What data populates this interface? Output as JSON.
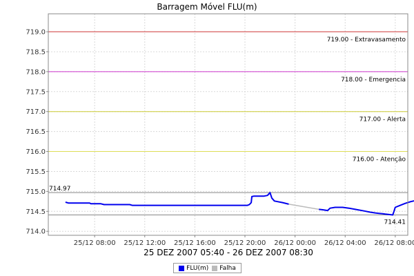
{
  "chart_data": {
    "type": "line",
    "title": "Barragem Móvel FLU(m)",
    "xlabel": "25 DEZ 2007 05:40 - 26 DEZ 2007 08:30",
    "ylabel": "",
    "grid": true,
    "ylim": [
      713.9,
      719.45
    ],
    "xlim_hours": [
      4.3,
      33.0
    ],
    "yticks": [
      "714.0",
      "714.5",
      "715.0",
      "715.5",
      "716.0",
      "716.5",
      "717.0",
      "717.5",
      "718.0",
      "718.5",
      "719.0"
    ],
    "xticks": [
      {
        "h": 8,
        "label": "25/12 08:00"
      },
      {
        "h": 12,
        "label": "25/12 12:00"
      },
      {
        "h": 16,
        "label": "25/12 16:00"
      },
      {
        "h": 20,
        "label": "25/12 20:00"
      },
      {
        "h": 24,
        "label": "26/12 00:00"
      },
      {
        "h": 28,
        "label": "26/12 04:00"
      },
      {
        "h": 32,
        "label": "26/12 08:00"
      }
    ],
    "thresholds": [
      {
        "value": 719.0,
        "label": "719.00 - Extravasamento",
        "color": "#cc3333"
      },
      {
        "value": 718.0,
        "label": "718.00 - Emergencia",
        "color": "#cc33cc"
      },
      {
        "value": 717.0,
        "label": "717.00 - Alerta",
        "color": "#cccc33"
      },
      {
        "value": 716.0,
        "label": "716.00 - Atenção",
        "color": "#dddd55"
      }
    ],
    "max_line": {
      "value": 714.97,
      "label": "714.97"
    },
    "min_line": {
      "value": 714.41,
      "label": "714.41"
    },
    "series": [
      {
        "name": "FLU(m)",
        "color": "#0000ee",
        "segments": [
          [
            [
              5.67,
              714.73
            ],
            [
              5.9,
              714.71
            ],
            [
              7.0,
              714.71
            ],
            [
              7.6,
              714.71
            ],
            [
              7.7,
              714.69
            ],
            [
              8.5,
              714.69
            ],
            [
              8.75,
              714.67
            ],
            [
              10.8,
              714.67
            ],
            [
              11.0,
              714.65
            ],
            [
              20.2,
              714.65
            ],
            [
              20.35,
              714.67
            ],
            [
              20.5,
              714.72
            ],
            [
              20.55,
              714.87
            ],
            [
              20.7,
              714.88
            ],
            [
              21.5,
              714.88
            ],
            [
              21.8,
              714.9
            ],
            [
              22.0,
              714.97
            ],
            [
              22.15,
              714.83
            ],
            [
              22.35,
              714.76
            ],
            [
              23.0,
              714.72
            ],
            [
              23.5,
              714.68
            ]
          ],
          [
            [
              25.9,
              714.55
            ],
            [
              26.2,
              714.54
            ],
            [
              26.6,
              714.52
            ],
            [
              26.8,
              714.58
            ],
            [
              27.2,
              714.6
            ],
            [
              27.8,
              714.6
            ],
            [
              28.3,
              714.58
            ],
            [
              28.8,
              714.55
            ],
            [
              29.5,
              714.51
            ],
            [
              30.0,
              714.48
            ],
            [
              30.4,
              714.46
            ],
            [
              30.7,
              714.45
            ],
            [
              31.0,
              714.44
            ],
            [
              31.2,
              714.43
            ],
            [
              31.5,
              714.42
            ],
            [
              31.8,
              714.41
            ],
            [
              31.9,
              714.5
            ],
            [
              32.0,
              714.6
            ],
            [
              32.4,
              714.65
            ],
            [
              32.8,
              714.7
            ],
            [
              33.2,
              714.74
            ],
            [
              33.6,
              714.77
            ],
            [
              33.9,
              714.8
            ],
            [
              34.3,
              714.82
            ],
            [
              34.6,
              714.82
            ]
          ]
        ]
      },
      {
        "name": "Falha",
        "color": "#bbbbbb",
        "segments": [
          [
            [
              23.5,
              714.68
            ],
            [
              25.9,
              714.55
            ]
          ]
        ]
      }
    ],
    "legend": {
      "position": "bottom-center",
      "entries": [
        "FLU(m)",
        "Falha"
      ]
    }
  }
}
